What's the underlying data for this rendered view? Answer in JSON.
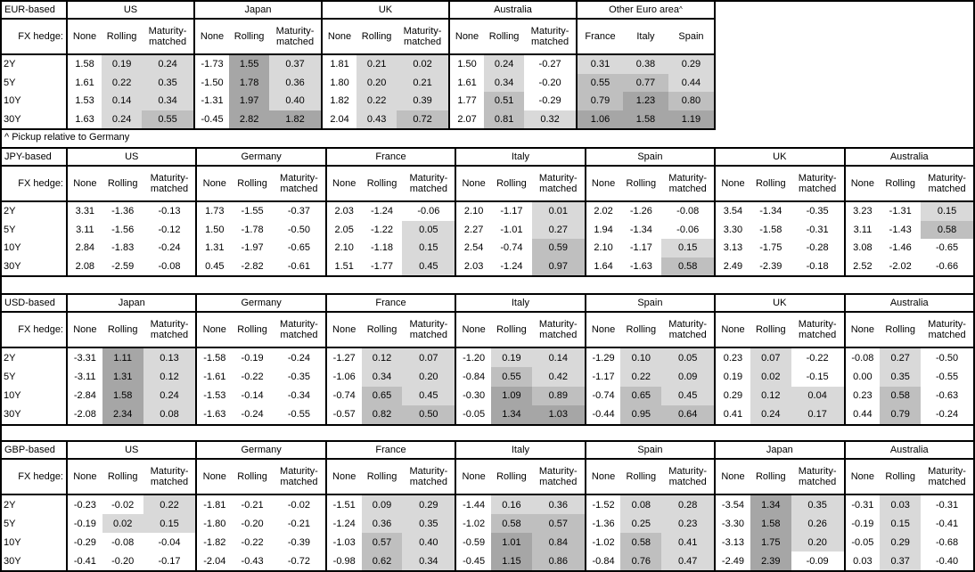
{
  "footnote": "^ Pickup relative to Germany",
  "shading": {
    "description": "positive pickup values shaded by magnitude; None columns and negatives unshaded",
    "light": "#d9d9d9",
    "medium": "#bfbfbf",
    "dark": "#a6a6a6",
    "medium_min": 0.5,
    "dark_min": 1.0
  },
  "tables": [
    {
      "id": "eur",
      "base_label": "EUR-based",
      "fx_hedge_label": "FX hedge:",
      "row_labels": [
        "2Y",
        "5Y",
        "10Y",
        "30Y"
      ],
      "blocks": [
        {
          "country": "US",
          "sup": "",
          "kind": "normal",
          "columns": [
            "None",
            "Rolling",
            "Maturity-matched"
          ],
          "shade_cols": [
            1,
            2
          ],
          "rows": [
            [
              "1.58",
              "0.19",
              "0.24"
            ],
            [
              "1.61",
              "0.22",
              "0.35"
            ],
            [
              "1.53",
              "0.14",
              "0.34"
            ],
            [
              "1.63",
              "0.24",
              "0.55"
            ]
          ]
        },
        {
          "country": "Japan",
          "sup": "",
          "kind": "normal",
          "columns": [
            "None",
            "Rolling",
            "Maturity-matched"
          ],
          "shade_cols": [
            1,
            2
          ],
          "rows": [
            [
              "-1.73",
              "1.55",
              "0.37"
            ],
            [
              "-1.50",
              "1.78",
              "0.36"
            ],
            [
              "-1.31",
              "1.97",
              "0.40"
            ],
            [
              "-0.45",
              "2.82",
              "1.82"
            ]
          ]
        },
        {
          "country": "UK",
          "sup": "",
          "kind": "normal",
          "columns": [
            "None",
            "Rolling",
            "Maturity-matched"
          ],
          "shade_cols": [
            1,
            2
          ],
          "rows": [
            [
              "1.81",
              "0.21",
              "0.02"
            ],
            [
              "1.80",
              "0.20",
              "0.21"
            ],
            [
              "1.82",
              "0.22",
              "0.39"
            ],
            [
              "2.04",
              "0.43",
              "0.72"
            ]
          ]
        },
        {
          "country": "Australia",
          "sup": "",
          "kind": "normal",
          "columns": [
            "None",
            "Rolling",
            "Maturity-matched"
          ],
          "shade_cols": [
            1,
            2
          ],
          "rows": [
            [
              "1.50",
              "0.24",
              "-0.27"
            ],
            [
              "1.61",
              "0.34",
              "-0.20"
            ],
            [
              "1.77",
              "0.51",
              "-0.29"
            ],
            [
              "2.07",
              "0.81",
              "0.32"
            ]
          ]
        },
        {
          "country": "Other Euro area",
          "sup": "^",
          "kind": "euro",
          "columns": [
            "France",
            "Italy",
            "Spain"
          ],
          "shade_cols": [
            0,
            1,
            2
          ],
          "rows": [
            [
              "0.31",
              "0.38",
              "0.29"
            ],
            [
              "0.55",
              "0.77",
              "0.44"
            ],
            [
              "0.79",
              "1.23",
              "0.80"
            ],
            [
              "1.06",
              "1.58",
              "1.19"
            ]
          ]
        }
      ]
    },
    {
      "id": "jpy",
      "base_label": "JPY-based",
      "fx_hedge_label": "FX hedge:",
      "row_labels": [
        "2Y",
        "5Y",
        "10Y",
        "30Y"
      ],
      "blocks": [
        {
          "country": "US",
          "sup": "",
          "kind": "normal",
          "columns": [
            "None",
            "Rolling",
            "Maturity-matched"
          ],
          "shade_cols": [
            1,
            2
          ],
          "rows": [
            [
              "3.31",
              "-1.36",
              "-0.13"
            ],
            [
              "3.11",
              "-1.56",
              "-0.12"
            ],
            [
              "2.84",
              "-1.83",
              "-0.24"
            ],
            [
              "2.08",
              "-2.59",
              "-0.08"
            ]
          ]
        },
        {
          "country": "Germany",
          "sup": "",
          "kind": "normal",
          "columns": [
            "None",
            "Rolling",
            "Maturity-matched"
          ],
          "shade_cols": [
            1,
            2
          ],
          "rows": [
            [
              "1.73",
              "-1.55",
              "-0.37"
            ],
            [
              "1.50",
              "-1.78",
              "-0.50"
            ],
            [
              "1.31",
              "-1.97",
              "-0.65"
            ],
            [
              "0.45",
              "-2.82",
              "-0.61"
            ]
          ]
        },
        {
          "country": "France",
          "sup": "",
          "kind": "normal",
          "columns": [
            "None",
            "Rolling",
            "Maturity-matched"
          ],
          "shade_cols": [
            1,
            2
          ],
          "rows": [
            [
              "2.03",
              "-1.24",
              "-0.06"
            ],
            [
              "2.05",
              "-1.22",
              "0.05"
            ],
            [
              "2.10",
              "-1.18",
              "0.15"
            ],
            [
              "1.51",
              "-1.77",
              "0.45"
            ]
          ]
        },
        {
          "country": "Italy",
          "sup": "",
          "kind": "normal",
          "columns": [
            "None",
            "Rolling",
            "Maturity-matched"
          ],
          "shade_cols": [
            1,
            2
          ],
          "rows": [
            [
              "2.10",
              "-1.17",
              "0.01"
            ],
            [
              "2.27",
              "-1.01",
              "0.27"
            ],
            [
              "2.54",
              "-0.74",
              "0.59"
            ],
            [
              "2.03",
              "-1.24",
              "0.97"
            ]
          ]
        },
        {
          "country": "Spain",
          "sup": "",
          "kind": "normal",
          "columns": [
            "None",
            "Rolling",
            "Maturity-matched"
          ],
          "shade_cols": [
            1,
            2
          ],
          "rows": [
            [
              "2.02",
              "-1.26",
              "-0.08"
            ],
            [
              "1.94",
              "-1.34",
              "-0.06"
            ],
            [
              "2.10",
              "-1.17",
              "0.15"
            ],
            [
              "1.64",
              "-1.63",
              "0.58"
            ]
          ]
        },
        {
          "country": "UK",
          "sup": "",
          "kind": "normal",
          "columns": [
            "None",
            "Rolling",
            "Maturity-matched"
          ],
          "shade_cols": [
            1,
            2
          ],
          "rows": [
            [
              "3.54",
              "-1.34",
              "-0.35"
            ],
            [
              "3.30",
              "-1.58",
              "-0.31"
            ],
            [
              "3.13",
              "-1.75",
              "-0.28"
            ],
            [
              "2.49",
              "-2.39",
              "-0.18"
            ]
          ]
        },
        {
          "country": "Australia",
          "sup": "",
          "kind": "normal",
          "columns": [
            "None",
            "Rolling",
            "Maturity-matched"
          ],
          "shade_cols": [
            1,
            2
          ],
          "rows": [
            [
              "3.23",
              "-1.31",
              "0.15"
            ],
            [
              "3.11",
              "-1.43",
              "0.58"
            ],
            [
              "3.08",
              "-1.46",
              "-0.65"
            ],
            [
              "2.52",
              "-2.02",
              "-0.66"
            ]
          ]
        }
      ]
    },
    {
      "id": "usd",
      "base_label": "USD-based",
      "fx_hedge_label": "FX hedge:",
      "row_labels": [
        "2Y",
        "5Y",
        "10Y",
        "30Y"
      ],
      "blocks": [
        {
          "country": "Japan",
          "sup": "",
          "kind": "normal",
          "columns": [
            "None",
            "Rolling",
            "Maturity-matched"
          ],
          "shade_cols": [
            1,
            2
          ],
          "rows": [
            [
              "-3.31",
              "1.11",
              "0.13"
            ],
            [
              "-3.11",
              "1.31",
              "0.12"
            ],
            [
              "-2.84",
              "1.58",
              "0.24"
            ],
            [
              "-2.08",
              "2.34",
              "0.08"
            ]
          ]
        },
        {
          "country": "Germany",
          "sup": "",
          "kind": "normal",
          "columns": [
            "None",
            "Rolling",
            "Maturity-matched"
          ],
          "shade_cols": [
            1,
            2
          ],
          "rows": [
            [
              "-1.58",
              "-0.19",
              "-0.24"
            ],
            [
              "-1.61",
              "-0.22",
              "-0.35"
            ],
            [
              "-1.53",
              "-0.14",
              "-0.34"
            ],
            [
              "-1.63",
              "-0.24",
              "-0.55"
            ]
          ]
        },
        {
          "country": "France",
          "sup": "",
          "kind": "normal",
          "columns": [
            "None",
            "Rolling",
            "Maturity-matched"
          ],
          "shade_cols": [
            1,
            2
          ],
          "rows": [
            [
              "-1.27",
              "0.12",
              "0.07"
            ],
            [
              "-1.06",
              "0.34",
              "0.20"
            ],
            [
              "-0.74",
              "0.65",
              "0.45"
            ],
            [
              "-0.57",
              "0.82",
              "0.50"
            ]
          ]
        },
        {
          "country": "Italy",
          "sup": "",
          "kind": "normal",
          "columns": [
            "None",
            "Rolling",
            "Maturity-matched"
          ],
          "shade_cols": [
            1,
            2
          ],
          "rows": [
            [
              "-1.20",
              "0.19",
              "0.14"
            ],
            [
              "-0.84",
              "0.55",
              "0.42"
            ],
            [
              "-0.30",
              "1.09",
              "0.89"
            ],
            [
              "-0.05",
              "1.34",
              "1.03"
            ]
          ]
        },
        {
          "country": "Spain",
          "sup": "",
          "kind": "normal",
          "columns": [
            "None",
            "Rolling",
            "Maturity-matched"
          ],
          "shade_cols": [
            1,
            2
          ],
          "rows": [
            [
              "-1.29",
              "0.10",
              "0.05"
            ],
            [
              "-1.17",
              "0.22",
              "0.09"
            ],
            [
              "-0.74",
              "0.65",
              "0.45"
            ],
            [
              "-0.44",
              "0.95",
              "0.64"
            ]
          ]
        },
        {
          "country": "UK",
          "sup": "",
          "kind": "normal",
          "columns": [
            "None",
            "Rolling",
            "Maturity-matched"
          ],
          "shade_cols": [
            1,
            2
          ],
          "rows": [
            [
              "0.23",
              "0.07",
              "-0.22"
            ],
            [
              "0.19",
              "0.02",
              "-0.15"
            ],
            [
              "0.29",
              "0.12",
              "0.04"
            ],
            [
              "0.41",
              "0.24",
              "0.17"
            ]
          ]
        },
        {
          "country": "Australia",
          "sup": "",
          "kind": "normal",
          "columns": [
            "None",
            "Rolling",
            "Maturity-matched"
          ],
          "shade_cols": [
            1,
            2
          ],
          "rows": [
            [
              "-0.08",
              "0.27",
              "-0.50"
            ],
            [
              "0.00",
              "0.35",
              "-0.55"
            ],
            [
              "0.23",
              "0.58",
              "-0.63"
            ],
            [
              "0.44",
              "0.79",
              "-0.24"
            ]
          ]
        }
      ]
    },
    {
      "id": "gbp",
      "base_label": "GBP-based",
      "fx_hedge_label": "FX hedge:",
      "row_labels": [
        "2Y",
        "5Y",
        "10Y",
        "30Y"
      ],
      "blocks": [
        {
          "country": "US",
          "sup": "",
          "kind": "normal",
          "columns": [
            "None",
            "Rolling",
            "Maturity-matched"
          ],
          "shade_cols": [
            1,
            2
          ],
          "rows": [
            [
              "-0.23",
              "-0.02",
              "0.22"
            ],
            [
              "-0.19",
              "0.02",
              "0.15"
            ],
            [
              "-0.29",
              "-0.08",
              "-0.04"
            ],
            [
              "-0.41",
              "-0.20",
              "-0.17"
            ]
          ]
        },
        {
          "country": "Germany",
          "sup": "",
          "kind": "normal",
          "columns": [
            "None",
            "Rolling",
            "Maturity-matched"
          ],
          "shade_cols": [
            1,
            2
          ],
          "rows": [
            [
              "-1.81",
              "-0.21",
              "-0.02"
            ],
            [
              "-1.80",
              "-0.20",
              "-0.21"
            ],
            [
              "-1.82",
              "-0.22",
              "-0.39"
            ],
            [
              "-2.04",
              "-0.43",
              "-0.72"
            ]
          ]
        },
        {
          "country": "France",
          "sup": "",
          "kind": "normal",
          "columns": [
            "None",
            "Rolling",
            "Maturity-matched"
          ],
          "shade_cols": [
            1,
            2
          ],
          "rows": [
            [
              "-1.51",
              "0.09",
              "0.29"
            ],
            [
              "-1.24",
              "0.36",
              "0.35"
            ],
            [
              "-1.03",
              "0.57",
              "0.40"
            ],
            [
              "-0.98",
              "0.62",
              "0.34"
            ]
          ]
        },
        {
          "country": "Italy",
          "sup": "",
          "kind": "normal",
          "columns": [
            "None",
            "Rolling",
            "Maturity-matched"
          ],
          "shade_cols": [
            1,
            2
          ],
          "rows": [
            [
              "-1.44",
              "0.16",
              "0.36"
            ],
            [
              "-1.02",
              "0.58",
              "0.57"
            ],
            [
              "-0.59",
              "1.01",
              "0.84"
            ],
            [
              "-0.45",
              "1.15",
              "0.86"
            ]
          ]
        },
        {
          "country": "Spain",
          "sup": "",
          "kind": "normal",
          "columns": [
            "None",
            "Rolling",
            "Maturity-matched"
          ],
          "shade_cols": [
            1,
            2
          ],
          "rows": [
            [
              "-1.52",
              "0.08",
              "0.28"
            ],
            [
              "-1.36",
              "0.25",
              "0.23"
            ],
            [
              "-1.02",
              "0.58",
              "0.41"
            ],
            [
              "-0.84",
              "0.76",
              "0.47"
            ]
          ]
        },
        {
          "country": "Japan",
          "sup": "",
          "kind": "normal",
          "columns": [
            "None",
            "Rolling",
            "Maturity-matched"
          ],
          "shade_cols": [
            1,
            2
          ],
          "rows": [
            [
              "-3.54",
              "1.34",
              "0.35"
            ],
            [
              "-3.30",
              "1.58",
              "0.26"
            ],
            [
              "-3.13",
              "1.75",
              "0.20"
            ],
            [
              "-2.49",
              "2.39",
              "-0.09"
            ]
          ]
        },
        {
          "country": "Australia",
          "sup": "",
          "kind": "normal",
          "columns": [
            "None",
            "Rolling",
            "Maturity-matched"
          ],
          "shade_cols": [
            1,
            2
          ],
          "rows": [
            [
              "-0.31",
              "0.03",
              "-0.31"
            ],
            [
              "-0.19",
              "0.15",
              "-0.41"
            ],
            [
              "-0.05",
              "0.29",
              "-0.68"
            ],
            [
              "0.03",
              "0.37",
              "-0.40"
            ]
          ]
        }
      ]
    }
  ]
}
